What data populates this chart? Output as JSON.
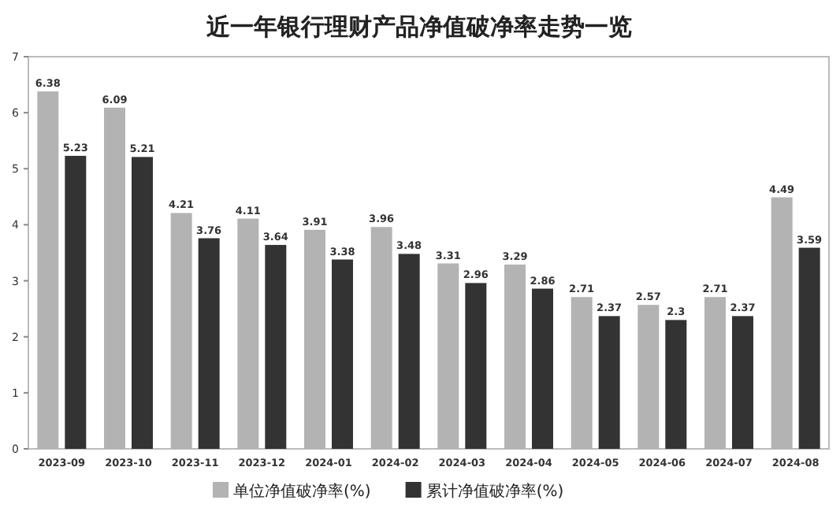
{
  "chart_data": {
    "type": "bar",
    "title": "近一年银行理财产品净值破净率走势一览",
    "categories": [
      "2023-09",
      "2023-10",
      "2023-11",
      "2023-12",
      "2024-01",
      "2024-02",
      "2024-03",
      "2024-04",
      "2024-05",
      "2024-06",
      "2024-07",
      "2024-08"
    ],
    "series": [
      {
        "name": "单位净值破净率(%)",
        "color": "#b3b3b3",
        "values": [
          6.38,
          6.09,
          4.21,
          4.11,
          3.91,
          3.96,
          3.31,
          3.29,
          2.71,
          2.57,
          2.71,
          4.49
        ]
      },
      {
        "name": "累计净值破净率(%)",
        "color": "#333333",
        "values": [
          5.23,
          5.21,
          3.76,
          3.64,
          3.38,
          3.48,
          2.96,
          2.86,
          2.37,
          2.3,
          2.37,
          3.59
        ]
      }
    ],
    "ylim": [
      0,
      7
    ],
    "yticks": [
      0,
      1,
      2,
      3,
      4,
      5,
      6,
      7
    ],
    "data_labels": true,
    "legend": "bottom"
  }
}
